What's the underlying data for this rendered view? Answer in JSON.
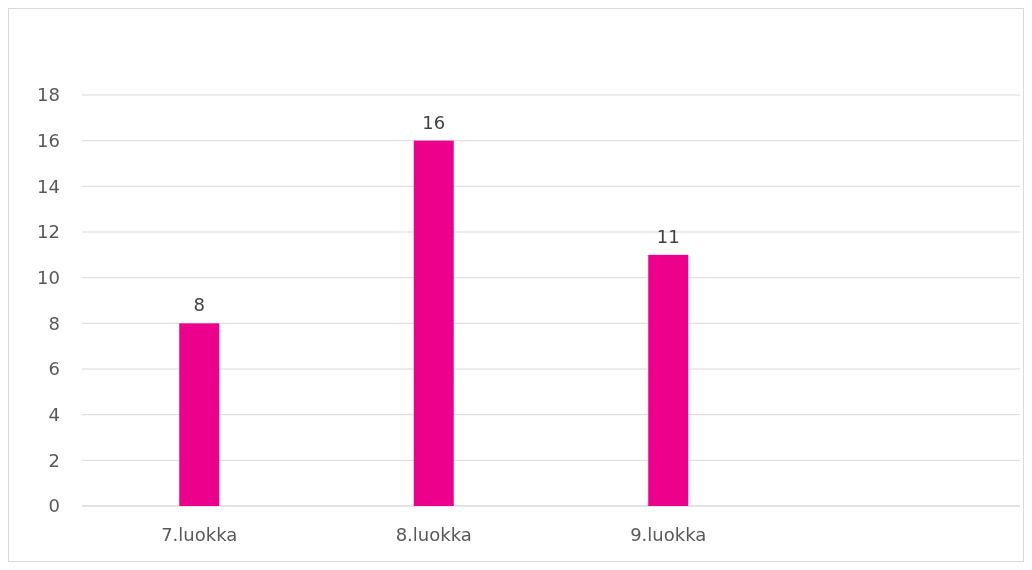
{
  "chart_data": {
    "type": "bar",
    "categories": [
      "7.luokka",
      "8.luokka",
      "9.luokka",
      null
    ],
    "values": [
      8,
      16,
      11,
      null
    ],
    "color": "#ec008c",
    "ylim": [
      0,
      18
    ],
    "yticks": [
      0,
      2,
      4,
      6,
      8,
      10,
      12,
      14,
      16,
      18
    ],
    "grid": "y",
    "data_labels": true
  }
}
